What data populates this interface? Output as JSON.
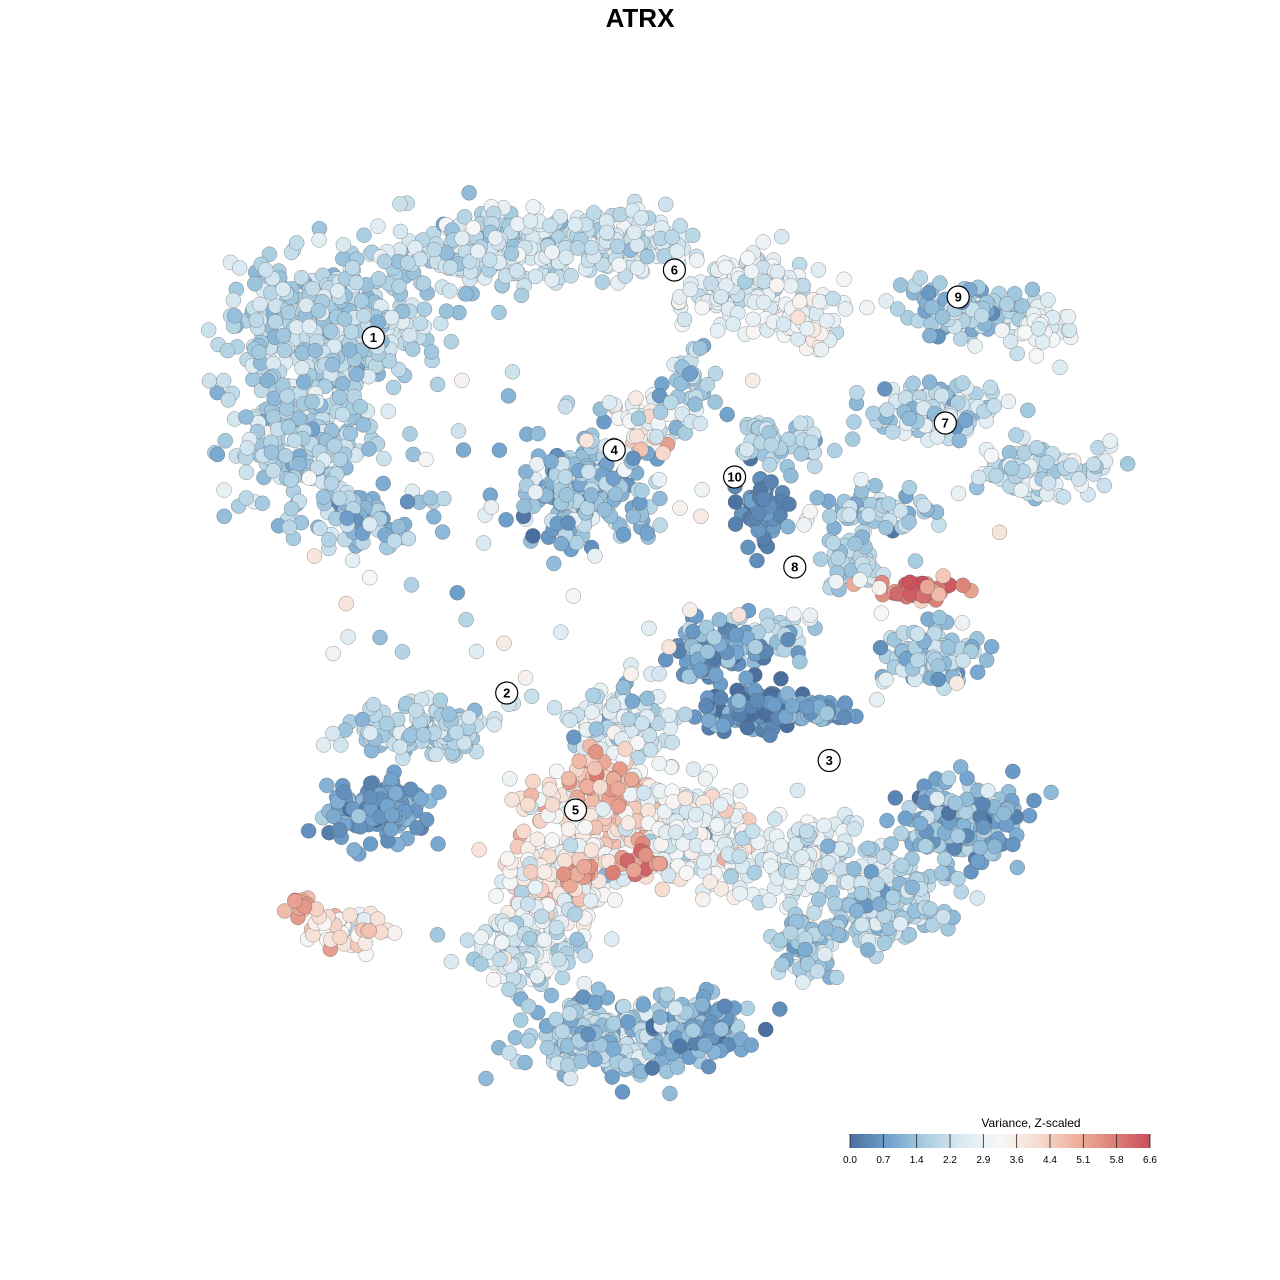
{
  "chart_data": {
    "type": "scatter",
    "title": "ATRX",
    "xlabel": "",
    "ylabel": "",
    "grid": false,
    "legend_position": "bottom-right",
    "colorbar": {
      "title": "Variance, Z-scaled",
      "min": 0.0,
      "max": 6.6,
      "ticks": [
        "0.0",
        "0.7",
        "1.4",
        "2.2",
        "2.9",
        "3.6",
        "4.4",
        "5.1",
        "5.8",
        "6.6"
      ],
      "colors": [
        "#4a6f9e",
        "#6fa0cc",
        "#a8cde1",
        "#dbeaf2",
        "#f7f7f7",
        "#f7ddd1",
        "#eeb19e",
        "#dd8478",
        "#c94f5d"
      ]
    },
    "clusters": [
      {
        "label": "1",
        "x": -6.2,
        "y": 5.9
      },
      {
        "label": "2",
        "x": -3.1,
        "y": -2.0
      },
      {
        "label": "3",
        "x": 4.4,
        "y": -3.5
      },
      {
        "label": "4",
        "x": -0.6,
        "y": 3.4
      },
      {
        "label": "5",
        "x": -1.5,
        "y": -4.6
      },
      {
        "label": "6",
        "x": 0.8,
        "y": 7.4
      },
      {
        "label": "7",
        "x": 7.1,
        "y": 4.0
      },
      {
        "label": "8",
        "x": 3.6,
        "y": 0.8
      },
      {
        "label": "9",
        "x": 7.4,
        "y": 6.8
      },
      {
        "label": "10",
        "x": 2.2,
        "y": 2.8
      }
    ]
  }
}
